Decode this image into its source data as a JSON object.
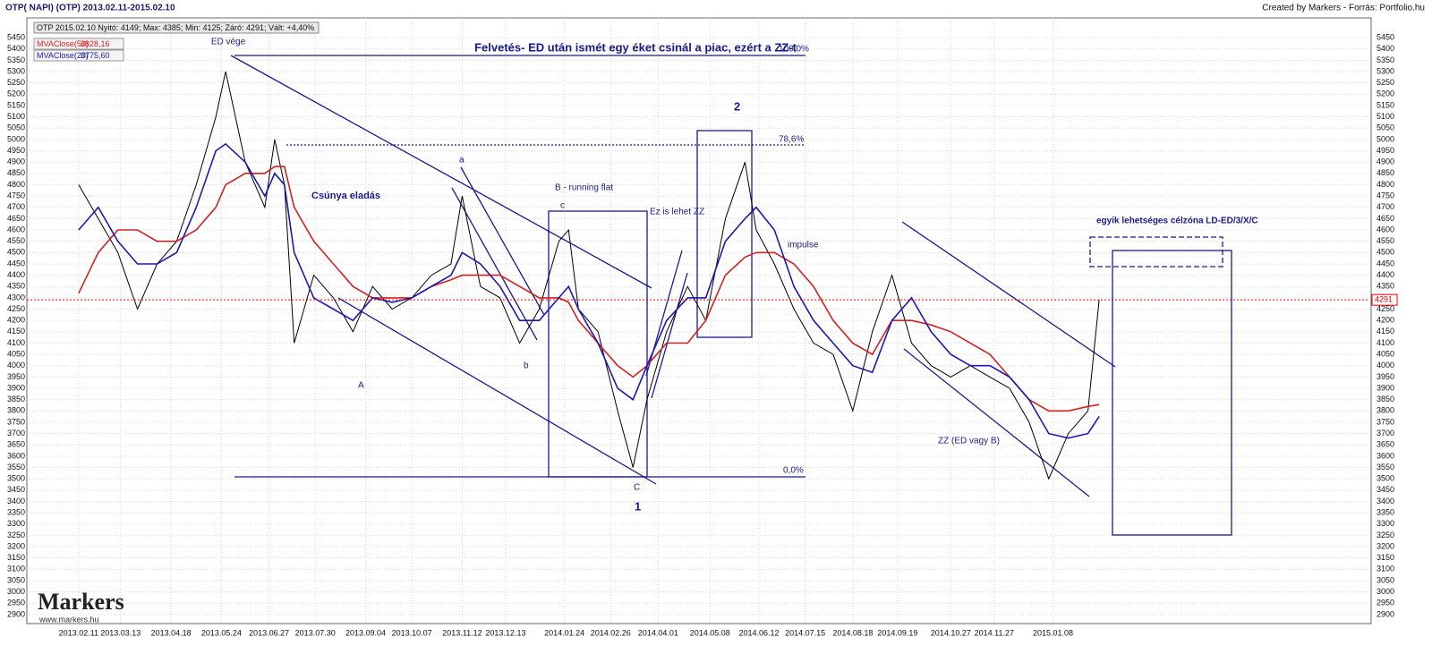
{
  "chart_data": {
    "type": "line",
    "header": "OTP( NAPI)  (OTP)  2013.02.11-2015.02.10",
    "source": "Created by Markers - Forrás: Portfolio.hu",
    "info": "OTP 2015.02.10 Nyitó: 4149; Max: 4385; Min: 4125; Záró: 4291; Vált: +4,40%",
    "title": "Felvetés- ED után ismét egy éket csinál a piac, ezért a ZZ-t",
    "x": [
      "2013.02.11",
      "2013.02.25",
      "2013.03.11",
      "2013.03.25",
      "2013.04.08",
      "2013.04.22",
      "2013.05.06",
      "2013.05.20",
      "2013.05.27",
      "2013.06.10",
      "2013.06.24",
      "2013.07.01",
      "2013.07.08",
      "2013.07.15",
      "2013.07.29",
      "2013.08.12",
      "2013.08.26",
      "2013.09.09",
      "2013.09.23",
      "2013.10.07",
      "2013.10.21",
      "2013.11.04",
      "2013.11.12",
      "2013.11.25",
      "2013.12.09",
      "2013.12.23",
      "2014.01.06",
      "2014.01.20",
      "2014.01.27",
      "2014.02.03",
      "2014.02.17",
      "2014.03.03",
      "2014.03.14",
      "2014.03.24",
      "2014.04.07",
      "2014.04.22",
      "2014.05.05",
      "2014.05.19",
      "2014.06.02",
      "2014.06.10",
      "2014.06.23",
      "2014.07.07",
      "2014.07.21",
      "2014.08.04",
      "2014.08.18",
      "2014.09.01",
      "2014.09.15",
      "2014.09.29",
      "2014.10.13",
      "2014.10.27",
      "2014.11.10",
      "2014.11.24",
      "2014.12.08",
      "2014.12.22",
      "2015.01.05",
      "2015.01.19",
      "2015.02.02",
      "2015.02.10"
    ],
    "series": [
      {
        "color": "#000000",
        "values": [
          4800,
          4650,
          4500,
          4250,
          4450,
          4550,
          4800,
          5100,
          5300,
          4900,
          4700,
          5000,
          4800,
          4100,
          4400,
          4300,
          4150,
          4350,
          4250,
          4300,
          4400,
          4450,
          4750,
          4350,
          4300,
          4100,
          4250,
          4550,
          4600,
          4250,
          4150,
          3800,
          3550,
          3850,
          4150,
          4350,
          4200,
          4650,
          4900,
          4600,
          4450,
          4250,
          4100,
          4050,
          3800,
          4150,
          4400,
          4100,
          4000,
          3950,
          4000,
          3950,
          3900,
          3750,
          3500,
          3700,
          3800,
          4291
        ]
      },
      {
        "name": "MVAClose(50)",
        "color": "#d42020",
        "last_label": "3828,16",
        "values": [
          4320,
          4500,
          4600,
          4600,
          4550,
          4550,
          4600,
          4700,
          4800,
          4850,
          4850,
          4880,
          4880,
          4700,
          4550,
          4450,
          4350,
          4300,
          4300,
          4300,
          4350,
          4380,
          4400,
          4400,
          4400,
          4350,
          4300,
          4300,
          4280,
          4200,
          4100,
          4000,
          3950,
          4000,
          4100,
          4100,
          4200,
          4400,
          4480,
          4500,
          4500,
          4450,
          4350,
          4200,
          4100,
          4050,
          4200,
          4200,
          4180,
          4150,
          4100,
          4050,
          3950,
          3850,
          3800,
          3800,
          3820,
          3828.16
        ]
      },
      {
        "name": "MVAClose(20)",
        "color": "#1a1ab0",
        "last_label": "3775,60",
        "values": [
          4600,
          4700,
          4550,
          4450,
          4450,
          4500,
          4700,
          4950,
          4980,
          4900,
          4750,
          4850,
          4800,
          4500,
          4300,
          4250,
          4200,
          4300,
          4280,
          4300,
          4350,
          4400,
          4500,
          4450,
          4350,
          4200,
          4200,
          4300,
          4350,
          4250,
          4100,
          3900,
          3850,
          4000,
          4200,
          4300,
          4300,
          4550,
          4650,
          4700,
          4600,
          4350,
          4200,
          4100,
          4000,
          3970,
          4200,
          4300,
          4150,
          4050,
          4000,
          4000,
          3950,
          3850,
          3700,
          3680,
          3700,
          3775.6
        ]
      }
    ],
    "last_price_color": "#ee0000",
    "xlim": [
      "2013.01.05",
      "2015.08.22"
    ],
    "xticks": [
      "2013.02.11",
      "2013.03.13",
      "2013.04.18",
      "2013.05.24",
      "2013.06.27",
      "2013.07.30",
      "2013.09.04",
      "2013.10.07",
      "2013.11.12",
      "2013.12.13",
      "2014.01.24",
      "2014.02.26",
      "2014.04.01",
      "2014.05.08",
      "2014.06.12",
      "2014.07.15",
      "2014.08.18",
      "2014.09.19",
      "2014.10.27",
      "2014.11.27",
      "2015.01.08"
    ],
    "ylim": [
      2860,
      5486
    ],
    "yticks": [
      2900,
      2950,
      3000,
      3050,
      3100,
      3150,
      3200,
      3250,
      3300,
      3350,
      3400,
      3450,
      3500,
      3550,
      3600,
      3650,
      3700,
      3750,
      3800,
      3850,
      3900,
      3950,
      4000,
      4050,
      4100,
      4150,
      4200,
      4250,
      4300,
      4350,
      4400,
      4450,
      4500,
      4550,
      4600,
      4650,
      4700,
      4750,
      4800,
      4850,
      4900,
      4950,
      5000,
      5050,
      5100,
      5150,
      5200,
      5250,
      5300,
      5350,
      5400,
      5450
    ],
    "grid": true,
    "annotations": [
      "ED vége",
      "100,0%",
      "2",
      "78,6%",
      "a",
      "B - running flat",
      "c",
      "Ez is lehet ZZ",
      "Csúnya eladás",
      "impulse",
      "A",
      "b",
      "C",
      "1",
      "0,0%",
      "ZZ (ED vagy B)",
      "egyik lehetséges célzóna LD-ED/3/X/C"
    ],
    "watermark": {
      "brand": "Markers",
      "url": "www.markers.hu"
    }
  }
}
